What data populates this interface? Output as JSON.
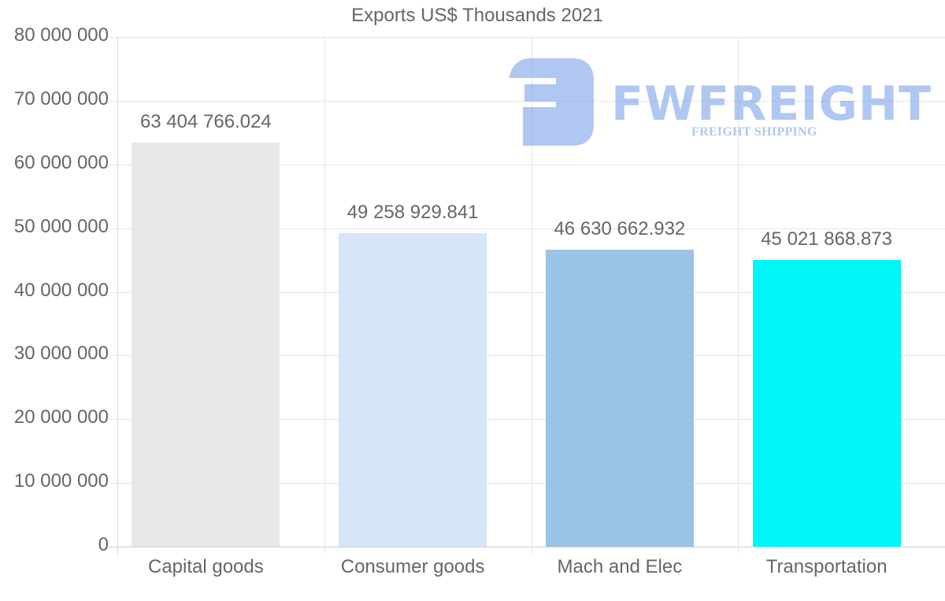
{
  "chart": {
    "title": "Exports US$ Thousands 2021",
    "y_ticks": [
      "80 000 000",
      "70 000 000",
      "60 000 000",
      "50 000 000",
      "40 000 000",
      "30 000 000",
      "20 000 000",
      "10 000 000",
      "0"
    ],
    "bars": [
      {
        "category": "Capital goods",
        "label": "63 404 766.024",
        "value": 63404766.024,
        "color": "#E8E8E8"
      },
      {
        "category": "Consumer goods",
        "label": "49 258 929.841",
        "value": 49258929.841,
        "color": "#D6E6F8"
      },
      {
        "category": "Mach and Elec",
        "label": "46 630 662.932",
        "value": 46630662.932,
        "color": "#9AC3E6"
      },
      {
        "category": "Transportation",
        "label": "45 021 868.873",
        "value": 45021868.873,
        "color": "#00F7F7"
      }
    ]
  },
  "watermark": {
    "brand": "FWFREIGHT",
    "tagline": "FREIGHT SHIPPING",
    "color": "#B0C8F2"
  },
  "chart_data": {
    "type": "bar",
    "title": "Exports US$ Thousands 2021",
    "categories": [
      "Capital goods",
      "Consumer goods",
      "Mach and Elec",
      "Transportation"
    ],
    "values": [
      63404766.024,
      49258929.841,
      46630662.932,
      45021868.873
    ],
    "colors": [
      "#E8E8E8",
      "#D6E6F8",
      "#9AC3E6",
      "#00F7F7"
    ],
    "data_labels": [
      "63 404 766.024",
      "49 258 929.841",
      "46 630 662.932",
      "45 021 868.873"
    ],
    "xlabel": "",
    "ylabel": "",
    "ylim": [
      0,
      80000000
    ],
    "y_tick_step": 10000000,
    "grid": true,
    "legend": "none"
  }
}
